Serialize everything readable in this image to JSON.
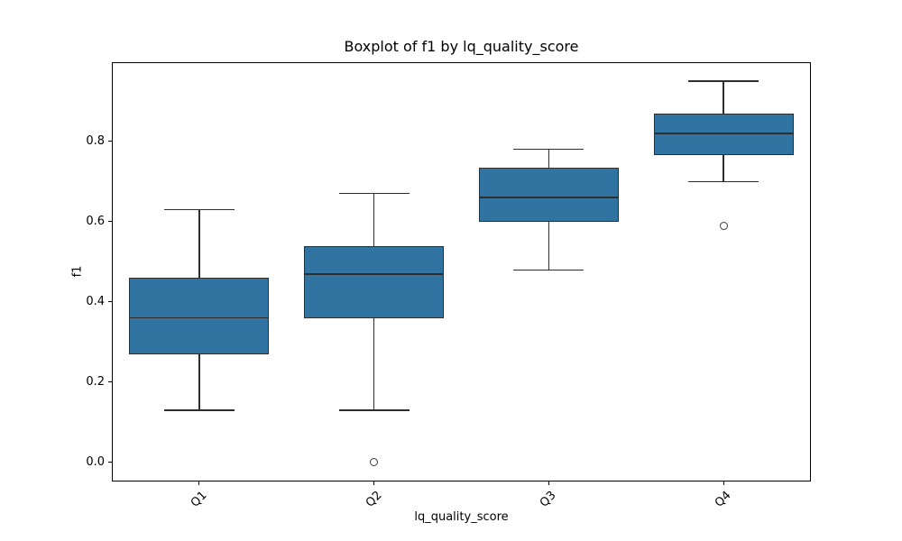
{
  "figure": {
    "colors": {
      "box_fill": "#3274a1",
      "box_edge": "#2e2e2e",
      "whisker": "#2e2e2e",
      "median": "#2e2e2e",
      "outlier_edge": "#3a3a3a",
      "spine": "#000000",
      "background": "#ffffff"
    }
  },
  "chart_data": {
    "type": "boxplot",
    "title": "Boxplot of f1 by lq_quality_score",
    "xlabel": "lq_quality_score",
    "ylabel": "f1",
    "categories": [
      "Q1",
      "Q2",
      "Q3",
      "Q4"
    ],
    "ylim": [
      -0.0475,
      0.9975
    ],
    "yticks": [
      0.0,
      0.2,
      0.4,
      0.6,
      0.8
    ],
    "ytick_labels": [
      "0.0",
      "0.2",
      "0.4",
      "0.6",
      "0.8"
    ],
    "grid": false,
    "legend": null,
    "boxes": [
      {
        "category": "Q1",
        "whisker_low": 0.13,
        "q1": 0.27,
        "median": 0.36,
        "q3": 0.46,
        "whisker_high": 0.63,
        "outliers": []
      },
      {
        "category": "Q2",
        "whisker_low": 0.13,
        "q1": 0.36,
        "median": 0.47,
        "q3": 0.54,
        "whisker_high": 0.67,
        "outliers": [
          0.0
        ]
      },
      {
        "category": "Q3",
        "whisker_low": 0.48,
        "q1": 0.6,
        "median": 0.66,
        "q3": 0.735,
        "whisker_high": 0.78,
        "outliers": []
      },
      {
        "category": "Q4",
        "whisker_low": 0.7,
        "q1": 0.765,
        "median": 0.82,
        "q3": 0.87,
        "whisker_high": 0.95,
        "outliers": [
          0.59
        ]
      }
    ]
  }
}
